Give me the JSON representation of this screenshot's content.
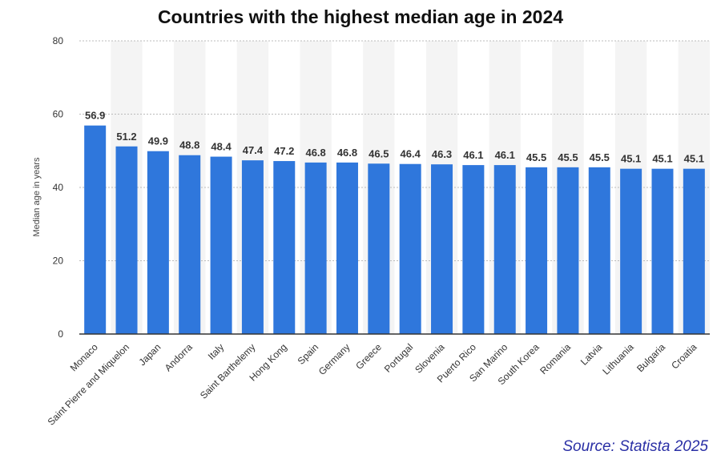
{
  "chart_data": {
    "type": "bar",
    "title": "Countries with the highest median age in 2024",
    "xlabel": "",
    "ylabel": "Median age in years",
    "ylim": [
      0,
      80
    ],
    "yticks": [
      0,
      20,
      40,
      60,
      80
    ],
    "grid": true,
    "categories": [
      "Monaco",
      "Saint Pierre and Miquelon",
      "Japan",
      "Andorra",
      "Italy",
      "Saint Barthelemy",
      "Hong Kong",
      "Spain",
      "Germany",
      "Greece",
      "Portugal",
      "Slovenia",
      "Puerto Rico",
      "San Marino",
      "South Korea",
      "Romania",
      "Latvia",
      "Lithuania",
      "Bulgaria",
      "Croatia"
    ],
    "values": [
      56.9,
      51.2,
      49.9,
      48.8,
      48.4,
      47.4,
      47.2,
      46.8,
      46.8,
      46.5,
      46.4,
      46.3,
      46.1,
      46.1,
      45.5,
      45.5,
      45.5,
      45.1,
      45.1,
      45.1
    ],
    "value_labels": [
      "56.9",
      "51.2",
      "49.9",
      "48.8",
      "48.4",
      "47.4",
      "47.2",
      "46.8",
      "46.8",
      "46.5",
      "46.4",
      "46.3",
      "46.1",
      "46.1",
      "45.5",
      "45.5",
      "45.5",
      "45.1",
      "45.1",
      "45.1"
    ],
    "bar_color": "#2f77dc",
    "band_color": "#f4f4f4",
    "grid_color": "#bbbbbb"
  },
  "source": "Source: Statista 2025"
}
